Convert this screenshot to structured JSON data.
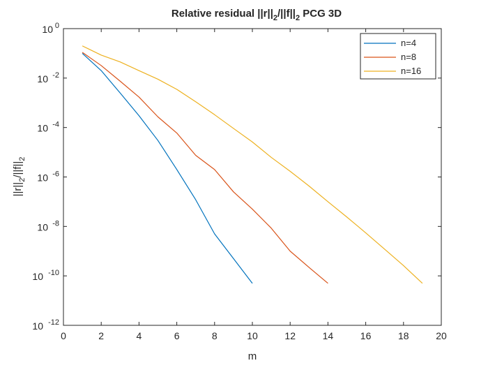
{
  "chart_data": {
    "type": "line",
    "title": {
      "main": "Relative residual ||r||",
      "sub1": "2",
      "mid": "/||f||",
      "sub2": "2",
      "tail": " PCG 3D"
    },
    "xlabel": "m",
    "ylabel": {
      "part1": "||r||",
      "sub1": "2",
      "part2": "/||f||",
      "sub2": "2"
    },
    "xlim": [
      0,
      20
    ],
    "ylim": [
      1e-12,
      1
    ],
    "y_scale": "log",
    "grid": false,
    "legend_position": "top-right",
    "x_ticks": [
      "0",
      "2",
      "4",
      "6",
      "8",
      "10",
      "12",
      "14",
      "16",
      "18",
      "20"
    ],
    "y_ticks": [
      {
        "base": "10",
        "exp": "0"
      },
      {
        "base": "10",
        "exp": "-2"
      },
      {
        "base": "10",
        "exp": "-4"
      },
      {
        "base": "10",
        "exp": "-6"
      },
      {
        "base": "10",
        "exp": "-8"
      },
      {
        "base": "10",
        "exp": "-10"
      },
      {
        "base": "10",
        "exp": "-12"
      }
    ],
    "series": [
      {
        "name": "n=4",
        "color": "#0072BD",
        "x": [
          1,
          2,
          3,
          4,
          5,
          6,
          7,
          8,
          9,
          10
        ],
        "y": [
          0.1,
          0.02,
          0.0025,
          0.0003,
          3e-05,
          2e-06,
          1.2e-07,
          5e-09,
          5e-10,
          5e-11
        ]
      },
      {
        "name": "n=8",
        "color": "#D95319",
        "x": [
          1,
          2,
          3,
          4,
          5,
          6,
          7,
          8,
          9,
          10,
          11,
          12,
          13,
          14
        ],
        "y": [
          0.11,
          0.032,
          0.0075,
          0.0017,
          0.00027,
          6e-05,
          7.5e-06,
          2e-06,
          2.5e-07,
          5e-08,
          8.5e-09,
          1e-09,
          2.2e-10,
          5e-11
        ]
      },
      {
        "name": "n=16",
        "color": "#EDB120",
        "x": [
          1,
          2,
          3,
          4,
          5,
          6,
          7,
          8,
          9,
          10,
          11,
          12,
          13,
          14,
          15,
          16,
          17,
          18,
          19
        ],
        "y": [
          0.2,
          0.085,
          0.045,
          0.02,
          0.009,
          0.0035,
          0.0011,
          0.00033,
          9.2e-05,
          2.6e-05,
          6.2e-06,
          1.7e-06,
          4.3e-07,
          1e-07,
          2.4e-08,
          5.5e-09,
          1.2e-09,
          2.6e-10,
          5e-11
        ]
      }
    ]
  }
}
